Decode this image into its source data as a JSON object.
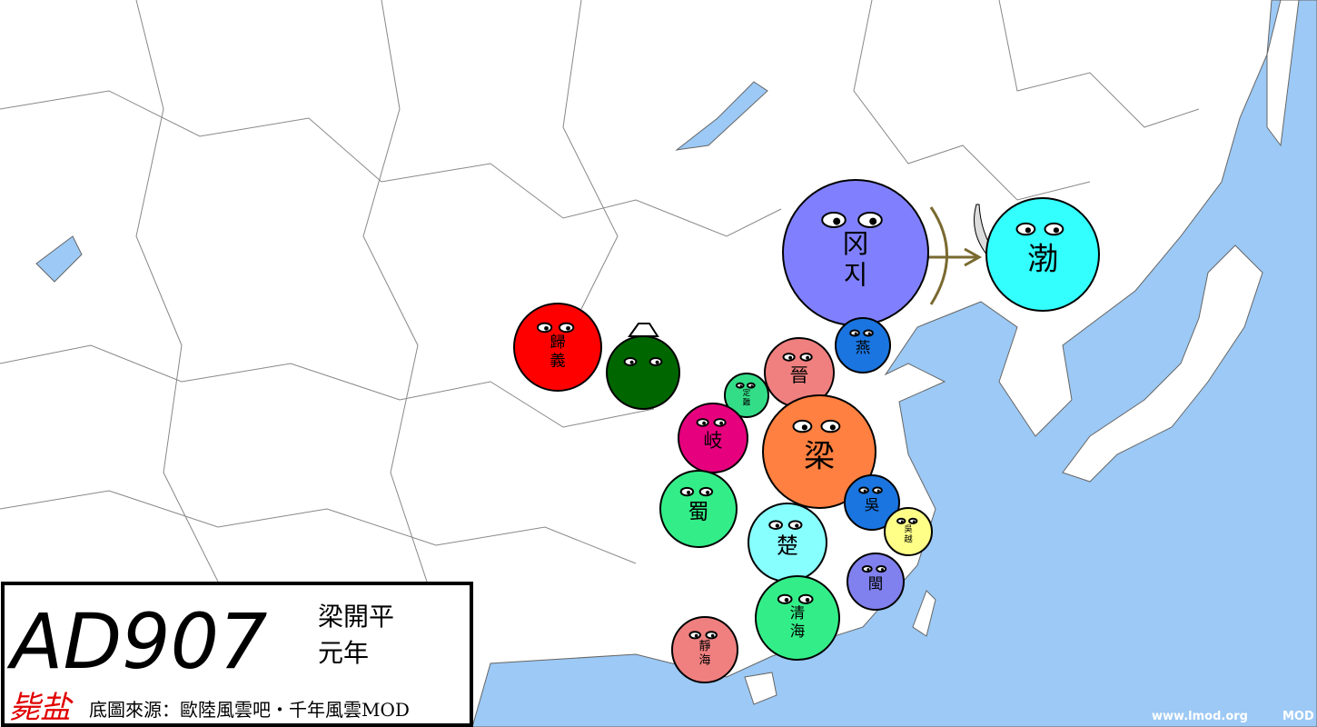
{
  "caption": {
    "year": "AD907",
    "era": [
      "梁開平",
      "元年"
    ],
    "signature": "毙盐",
    "source": "底圖來源：歐陸風雲吧・千年風雲MOD"
  },
  "watermark": {
    "site": "www.lmod.org",
    "mod": "MOD"
  },
  "balls": [
    {
      "label": [
        "冈",
        "지"
      ]
    },
    {
      "label": [
        "渤"
      ]
    },
    {
      "label": [
        "歸",
        "義"
      ]
    },
    {
      "label": [
        "燕"
      ]
    },
    {
      "label": [
        "晉"
      ]
    },
    {
      "label": [
        "定",
        "難"
      ]
    },
    {
      "label": [
        "岐"
      ]
    },
    {
      "label": [
        "梁"
      ]
    },
    {
      "label": [
        "蜀"
      ]
    },
    {
      "label": [
        "吳"
      ]
    },
    {
      "label": [
        "吳",
        "越"
      ]
    },
    {
      "label": [
        "楚"
      ]
    },
    {
      "label": [
        "閩"
      ]
    },
    {
      "label": [
        "清",
        "海"
      ]
    },
    {
      "label": [
        "靜",
        "海"
      ]
    }
  ]
}
